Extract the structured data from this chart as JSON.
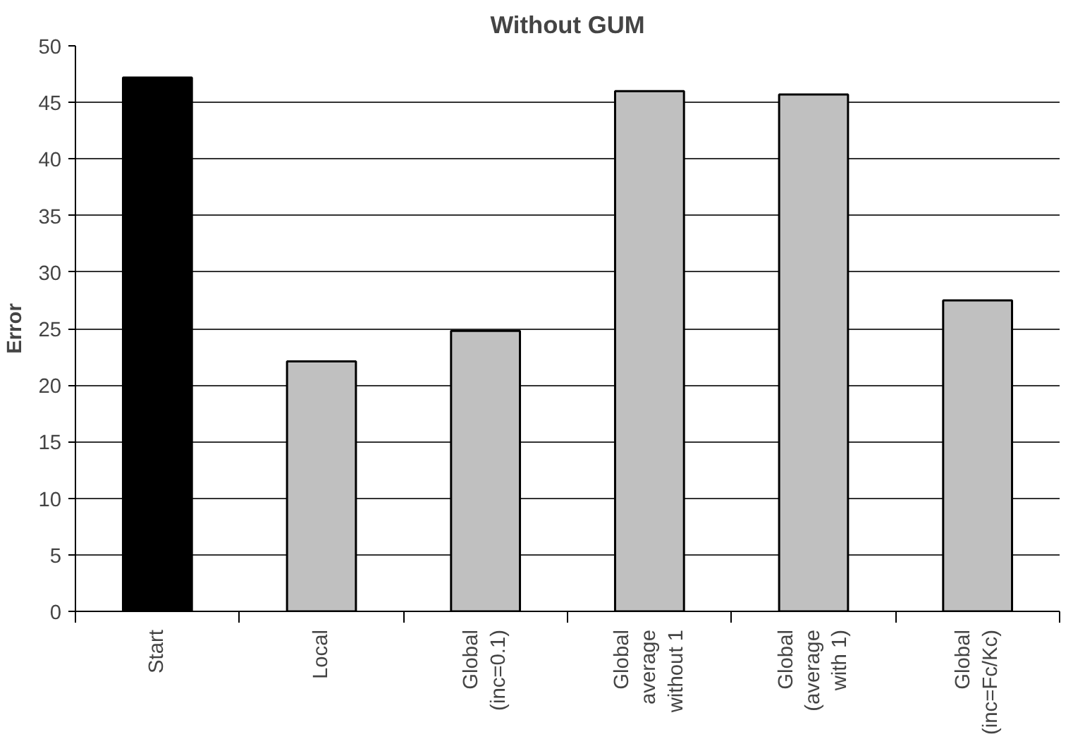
{
  "chart_data": {
    "type": "bar",
    "title": "Without GUM",
    "ylabel": "Error",
    "categories": [
      "Start",
      "Local",
      "Global\n(inc=0.1)",
      "Global\naverage\nwithout 1",
      "Global\n(average\nwith 1)",
      "Global\n(inc=Fc/Kc)"
    ],
    "values": [
      47.2,
      22.1,
      24.8,
      46.0,
      45.7,
      27.5
    ],
    "colors": [
      "#000000",
      "#c0c0c0",
      "#c0c0c0",
      "#c0c0c0",
      "#c0c0c0",
      "#c0c0c0"
    ],
    "ylim": [
      0,
      50
    ],
    "yticks": [
      0,
      5,
      10,
      15,
      20,
      25,
      30,
      35,
      40,
      45,
      50
    ],
    "grid": "y"
  }
}
